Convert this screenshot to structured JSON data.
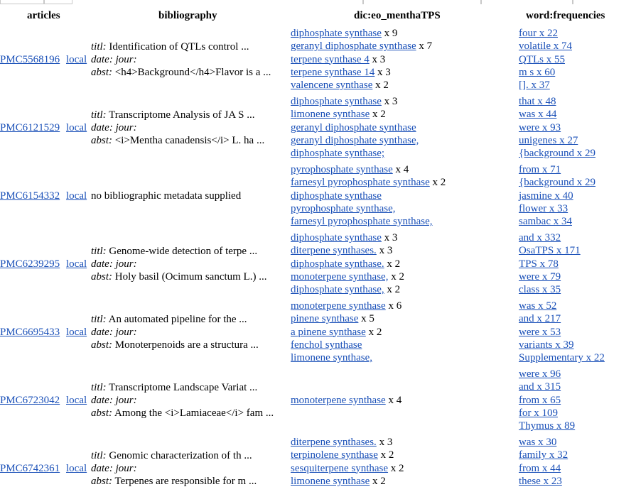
{
  "headers": {
    "articles": "articles",
    "bibliography": "bibliography",
    "dictionary": "dic:eo_menthaTPS",
    "words": "word:frequencies"
  },
  "labels": {
    "titl": "titl:",
    "date": "date:",
    "jour": "jour:",
    "abst": "abst:",
    "local": "local"
  },
  "rows": [
    {
      "id": "PMC5568196",
      "titl": "Identification of QTLs control ...",
      "abst": "<h4>Background</h4>Flavor is a ...",
      "terms": [
        {
          "text": "diphosphate synthase",
          "count": " x 9"
        },
        {
          "text": "geranyl diphosphate synthase",
          "count": " x 7"
        },
        {
          "text": "terpene synthase 4",
          "count": " x 3"
        },
        {
          "text": "terpene synthase 14",
          "count": " x 3"
        },
        {
          "text": "valencene synthase",
          "count": " x 2"
        }
      ],
      "words": [
        "four x 22",
        "volatile x 74",
        "QTLs x 55",
        "m s x 60",
        "[]. x 37"
      ]
    },
    {
      "id": "PMC6121529",
      "titl": "Transcriptome Analysis of JA S ...",
      "abst": "<i>Mentha canadensis</i> L. ha ...",
      "terms": [
        {
          "text": "diphosphate synthase",
          "count": " x 3"
        },
        {
          "text": "limonene synthase",
          "count": " x 2"
        },
        {
          "text": "geranyl diphosphate synthase",
          "count": ""
        },
        {
          "text": "geranyl diphosphate synthase,",
          "count": ""
        },
        {
          "text": "diphosphate synthase;",
          "count": ""
        }
      ],
      "words": [
        "that x 48",
        "was x 44",
        "were x 93",
        "unigenes x 27",
        "{background x 29"
      ]
    },
    {
      "id": "PMC6154332",
      "meta": "no bibliographic metadata supplied",
      "terms": [
        {
          "text": "pyrophosphate synthase",
          "count": " x 4"
        },
        {
          "text": "farnesyl pyrophosphate synthase",
          "count": " x 2"
        },
        {
          "text": "diphosphate synthase",
          "count": ""
        },
        {
          "text": "pyrophosphate synthase,",
          "count": ""
        },
        {
          "text": "farnesyl pyrophosphate synthase,",
          "count": ""
        }
      ],
      "words": [
        "from x 71",
        "{background x 29",
        "jasmine x 40",
        "flower x 33",
        "sambac x 34"
      ]
    },
    {
      "id": "PMC6239295",
      "titl": "Genome-wide detection of terpe ...",
      "abst": "Holy basil (Ocimum sanctum L.) ...",
      "terms": [
        {
          "text": "diphosphate synthase",
          "count": " x 3"
        },
        {
          "text": "diterpene synthases.",
          "count": " x 3"
        },
        {
          "text": "diphosphate synthase.",
          "count": " x 2"
        },
        {
          "text": "monoterpene synthase,",
          "count": " x 2"
        },
        {
          "text": "diphosphate synthase,",
          "count": " x 2"
        }
      ],
      "words": [
        "and x 332",
        "OsaTPS x 171",
        "TPS x 78",
        "were x 79",
        "class x 35"
      ]
    },
    {
      "id": "PMC6695433",
      "titl": "An automated pipeline for the ...",
      "abst": "Monoterpenoids are a structura ...",
      "terms": [
        {
          "text": "monoterpene synthase",
          "count": " x 6"
        },
        {
          "text": "pinene synthase",
          "count": " x 5"
        },
        {
          "text": "a pinene synthase",
          "count": " x 2"
        },
        {
          "text": "fenchol synthase",
          "count": ""
        },
        {
          "text": "limonene synthase,",
          "count": ""
        }
      ],
      "words": [
        "was x 52",
        "and x 217",
        "were x 53",
        "variants x 39",
        "Supplementary x 22"
      ]
    },
    {
      "id": "PMC6723042",
      "titl": "Transcriptome Landscape Variat ...",
      "abst": "Among the <i>Lamiaceae</i> fam ...",
      "terms": [
        {
          "text": "monoterpene synthase",
          "count": " x 4"
        }
      ],
      "words": [
        "were x 96",
        "and x 315",
        "from x 65",
        "for x 109",
        "Thymus x 89"
      ]
    },
    {
      "id": "PMC6742361",
      "titl": "Genomic characterization of th ...",
      "abst": "Terpenes are responsible for m ...",
      "terms": [
        {
          "text": "diterpene synthases.",
          "count": " x 3"
        },
        {
          "text": "terpinolene synthase",
          "count": " x 2"
        },
        {
          "text": "sesquiterpene synthase",
          "count": " x 2"
        },
        {
          "text": "limonene synthase",
          "count": " x 2"
        }
      ],
      "words": [
        "was x 30",
        "family x 32",
        "from x 44",
        "these x 23"
      ]
    }
  ]
}
